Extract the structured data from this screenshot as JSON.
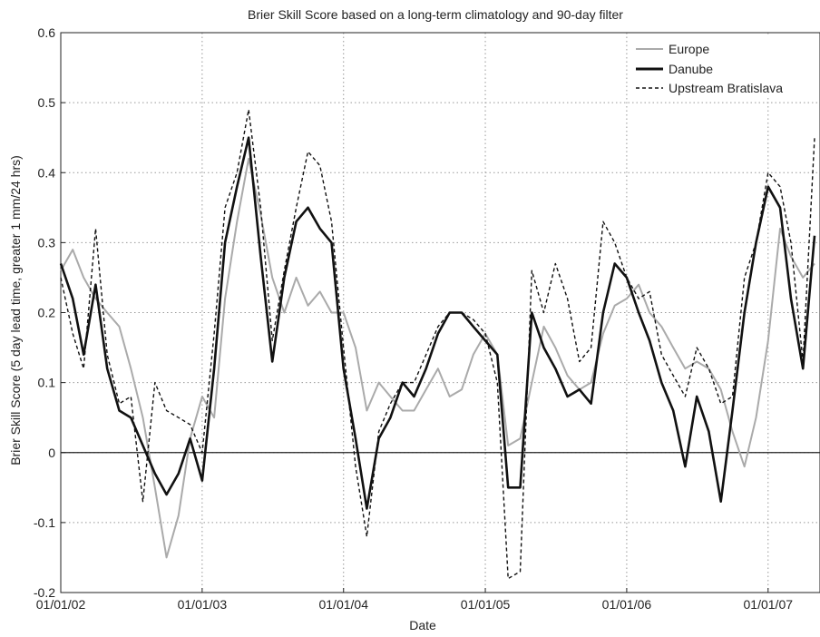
{
  "chart_data": {
    "type": "line",
    "title": "Brier Skill Score based on a long-term climatology and 90-day filter",
    "xlabel": "Date",
    "ylabel": "Brier Skill Score (5 day lead time, greater 1 mm/24 hrs)",
    "xlim": [
      "2002-01-01",
      "2007-05-15"
    ],
    "ylim": [
      -0.2,
      0.6
    ],
    "x_ticks": [
      "01/01/02",
      "01/01/03",
      "01/01/04",
      "01/01/05",
      "01/01/06",
      "01/01/07"
    ],
    "y_ticks": [
      "-0.2",
      "-0.1",
      "0",
      "0.1",
      "0.2",
      "0.3",
      "0.4",
      "0.5",
      "0.6"
    ],
    "grid": true,
    "legend_position": "top-right",
    "colors": {
      "Europe": "#aaaaaa",
      "Danube": "#111111",
      "Upstream Bratislava": "#111111"
    },
    "series": [
      {
        "name": "Europe",
        "style": "solid-light",
        "x": [
          "2002-01-01",
          "2002-02-01",
          "2002-03-01",
          "2002-04-01",
          "2002-05-01",
          "2002-06-01",
          "2002-07-01",
          "2002-08-01",
          "2002-09-01",
          "2002-10-01",
          "2002-11-01",
          "2002-12-01",
          "2003-01-01",
          "2003-02-01",
          "2003-03-01",
          "2003-04-01",
          "2003-05-01",
          "2003-06-01",
          "2003-07-01",
          "2003-08-01",
          "2003-09-01",
          "2003-10-01",
          "2003-11-01",
          "2003-12-01",
          "2004-01-01",
          "2004-02-01",
          "2004-03-01",
          "2004-04-01",
          "2004-05-01",
          "2004-06-01",
          "2004-07-01",
          "2004-08-01",
          "2004-09-01",
          "2004-10-01",
          "2004-11-01",
          "2004-12-01",
          "2005-01-01",
          "2005-02-01",
          "2005-03-01",
          "2005-04-01",
          "2005-05-01",
          "2005-06-01",
          "2005-07-01",
          "2005-08-01",
          "2005-09-01",
          "2005-10-01",
          "2005-11-01",
          "2005-12-01",
          "2006-01-01",
          "2006-02-01",
          "2006-03-01",
          "2006-04-01",
          "2006-05-01",
          "2006-06-01",
          "2006-07-01",
          "2006-08-01",
          "2006-09-01",
          "2006-10-01",
          "2006-11-01",
          "2006-12-01",
          "2007-01-01",
          "2007-02-01",
          "2007-03-01",
          "2007-04-01",
          "2007-05-01"
        ],
        "values": [
          0.26,
          0.29,
          0.25,
          0.22,
          0.2,
          0.18,
          0.12,
          0.05,
          -0.05,
          -0.15,
          -0.09,
          0.02,
          0.08,
          0.05,
          0.22,
          0.33,
          0.42,
          0.34,
          0.25,
          0.2,
          0.25,
          0.21,
          0.23,
          0.2,
          0.2,
          0.15,
          0.06,
          0.1,
          0.08,
          0.06,
          0.06,
          0.09,
          0.12,
          0.08,
          0.09,
          0.14,
          0.17,
          0.14,
          0.01,
          0.02,
          0.1,
          0.18,
          0.15,
          0.11,
          0.09,
          0.1,
          0.17,
          0.21,
          0.22,
          0.24,
          0.2,
          0.18,
          0.15,
          0.12,
          0.13,
          0.12,
          0.09,
          0.03,
          -0.02,
          0.05,
          0.16,
          0.32,
          0.28,
          0.25,
          0.27
        ]
      },
      {
        "name": "Danube",
        "style": "solid-thick",
        "x": [
          "2002-01-01",
          "2002-02-01",
          "2002-03-01",
          "2002-04-01",
          "2002-05-01",
          "2002-06-01",
          "2002-07-01",
          "2002-08-01",
          "2002-09-01",
          "2002-10-01",
          "2002-11-01",
          "2002-12-01",
          "2003-01-01",
          "2003-02-01",
          "2003-03-01",
          "2003-04-01",
          "2003-05-01",
          "2003-06-01",
          "2003-07-01",
          "2003-08-01",
          "2003-09-01",
          "2003-10-01",
          "2003-11-01",
          "2003-12-01",
          "2004-01-01",
          "2004-02-01",
          "2004-03-01",
          "2004-04-01",
          "2004-05-01",
          "2004-06-01",
          "2004-07-01",
          "2004-08-01",
          "2004-09-01",
          "2004-10-01",
          "2004-11-01",
          "2004-12-01",
          "2005-01-01",
          "2005-02-01",
          "2005-03-01",
          "2005-04-01",
          "2005-05-01",
          "2005-06-01",
          "2005-07-01",
          "2005-08-01",
          "2005-09-01",
          "2005-10-01",
          "2005-11-01",
          "2005-12-01",
          "2006-01-01",
          "2006-02-01",
          "2006-03-01",
          "2006-04-01",
          "2006-05-01",
          "2006-06-01",
          "2006-07-01",
          "2006-08-01",
          "2006-09-01",
          "2006-10-01",
          "2006-11-01",
          "2006-12-01",
          "2007-01-01",
          "2007-02-01",
          "2007-03-01",
          "2007-04-01",
          "2007-05-01"
        ],
        "values": [
          0.27,
          0.22,
          0.14,
          0.24,
          0.12,
          0.06,
          0.05,
          0.01,
          -0.03,
          -0.06,
          -0.03,
          0.02,
          -0.04,
          0.12,
          0.3,
          0.38,
          0.45,
          0.28,
          0.13,
          0.25,
          0.33,
          0.35,
          0.32,
          0.3,
          0.12,
          0.02,
          -0.08,
          0.02,
          0.05,
          0.1,
          0.08,
          0.12,
          0.17,
          0.2,
          0.2,
          0.18,
          0.16,
          0.14,
          -0.05,
          -0.05,
          0.2,
          0.15,
          0.12,
          0.08,
          0.09,
          0.07,
          0.2,
          0.27,
          0.25,
          0.2,
          0.16,
          0.1,
          0.06,
          -0.02,
          0.08,
          0.03,
          -0.07,
          0.06,
          0.2,
          0.3,
          0.38,
          0.35,
          0.22,
          0.12,
          0.31
        ]
      },
      {
        "name": "Upstream Bratislava",
        "style": "dashed",
        "x": [
          "2002-01-01",
          "2002-02-01",
          "2002-03-01",
          "2002-04-01",
          "2002-05-01",
          "2002-06-01",
          "2002-07-01",
          "2002-08-01",
          "2002-09-01",
          "2002-10-01",
          "2002-11-01",
          "2002-12-01",
          "2003-01-01",
          "2003-02-01",
          "2003-03-01",
          "2003-04-01",
          "2003-05-01",
          "2003-06-01",
          "2003-07-01",
          "2003-08-01",
          "2003-09-01",
          "2003-10-01",
          "2003-11-01",
          "2003-12-01",
          "2004-01-01",
          "2004-02-01",
          "2004-03-01",
          "2004-04-01",
          "2004-05-01",
          "2004-06-01",
          "2004-07-01",
          "2004-08-01",
          "2004-09-01",
          "2004-10-01",
          "2004-11-01",
          "2004-12-01",
          "2005-01-01",
          "2005-02-01",
          "2005-03-01",
          "2005-04-01",
          "2005-05-01",
          "2005-06-01",
          "2005-07-01",
          "2005-08-01",
          "2005-09-01",
          "2005-10-01",
          "2005-11-01",
          "2005-12-01",
          "2006-01-01",
          "2006-02-01",
          "2006-03-01",
          "2006-04-01",
          "2006-05-01",
          "2006-06-01",
          "2006-07-01",
          "2006-08-01",
          "2006-09-01",
          "2006-10-01",
          "2006-11-01",
          "2006-12-01",
          "2007-01-01",
          "2007-02-01",
          "2007-03-01",
          "2007-04-01",
          "2007-05-01"
        ],
        "values": [
          0.25,
          0.17,
          0.12,
          0.32,
          0.14,
          0.07,
          0.08,
          -0.07,
          0.1,
          0.06,
          0.05,
          0.04,
          0.0,
          0.17,
          0.35,
          0.4,
          0.49,
          0.35,
          0.16,
          0.26,
          0.35,
          0.43,
          0.41,
          0.33,
          0.15,
          -0.02,
          -0.12,
          0.03,
          0.07,
          0.1,
          0.1,
          0.14,
          0.18,
          0.2,
          0.2,
          0.19,
          0.17,
          0.1,
          -0.18,
          -0.17,
          0.26,
          0.2,
          0.27,
          0.22,
          0.13,
          0.15,
          0.33,
          0.3,
          0.25,
          0.22,
          0.23,
          0.14,
          0.11,
          0.08,
          0.15,
          0.12,
          0.07,
          0.08,
          0.25,
          0.3,
          0.4,
          0.38,
          0.3,
          0.13,
          0.45
        ]
      }
    ]
  }
}
